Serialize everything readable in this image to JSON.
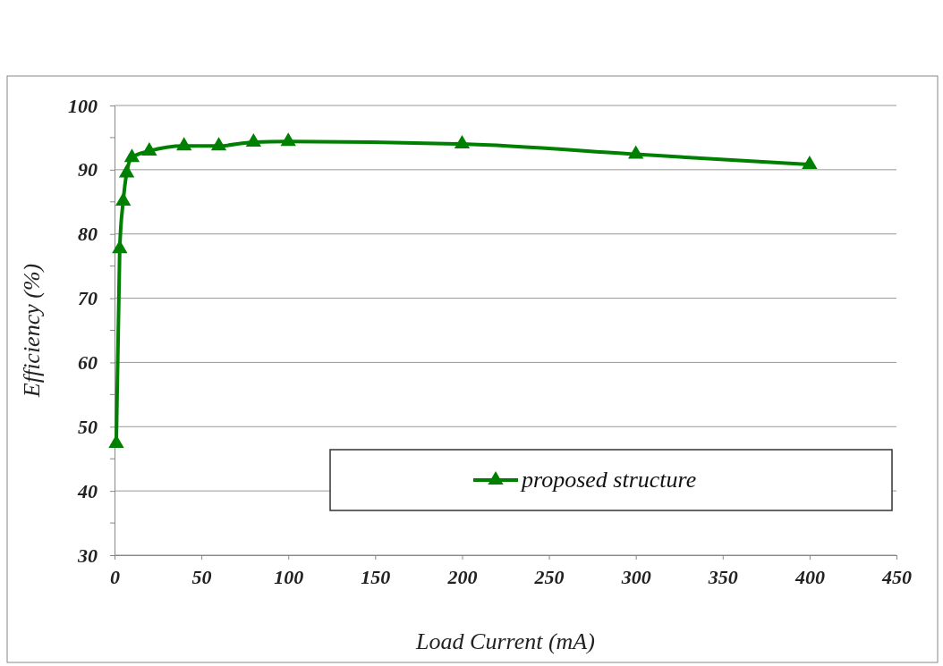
{
  "chart_data": {
    "type": "line",
    "xlabel": "Load Current  (mA)",
    "ylabel": "Efficiency (%)",
    "x": [
      1,
      3,
      5,
      7,
      10,
      20,
      40,
      60,
      80,
      100,
      200,
      300,
      400
    ],
    "series": [
      {
        "name": "proposed structure",
        "color": "#008000",
        "values": [
          47.4,
          77.7,
          85.1,
          89.5,
          91.9,
          92.9,
          93.7,
          93.7,
          94.3,
          94.4,
          94.0,
          92.4,
          90.8
        ]
      }
    ],
    "xlim": [
      0,
      450
    ],
    "xticks": [
      0,
      50,
      100,
      150,
      200,
      250,
      300,
      350,
      400,
      450
    ],
    "ylim": [
      30,
      100
    ],
    "yticks": [
      30,
      40,
      50,
      60,
      70,
      80,
      90,
      100
    ],
    "grid": "y",
    "legend": "bottom right",
    "marker": "triangle",
    "line_style": "solid"
  }
}
